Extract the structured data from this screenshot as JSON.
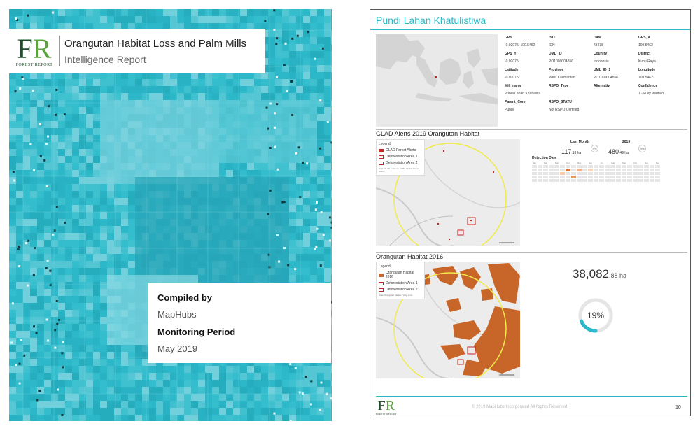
{
  "cover": {
    "logo_letters_f": "F",
    "logo_letters_r": "R",
    "logo_sub": "FOREST REPORT",
    "title": "Orangutan Habitat Loss and Palm Mills",
    "subtitle": "Intelligence Report",
    "compiled_label": "Compiled by",
    "compiled_value": "MapHubs",
    "period_label": "Monitoring Period",
    "period_value": "May 2019"
  },
  "report": {
    "mill_name": "Pundi Lahan Khatulistiwa",
    "attributes": [
      {
        "key": "GPS",
        "value": "-0.02075, 109.5462"
      },
      {
        "key": "ISO",
        "value": "IDN"
      },
      {
        "key": "Date",
        "value": "43438"
      },
      {
        "key": "GPS_X",
        "value": "109.5462"
      },
      {
        "key": "GPS_Y",
        "value": "-0.02075"
      },
      {
        "key": "UML_ID",
        "value": "PO1000004856"
      },
      {
        "key": "Country",
        "value": "Indonesia"
      },
      {
        "key": "District",
        "value": "Kubu Raya"
      },
      {
        "key": "Latitude",
        "value": "-0.02075"
      },
      {
        "key": "Province",
        "value": "West Kalimantan"
      },
      {
        "key": "UML_ID_1",
        "value": "PO1000004856"
      },
      {
        "key": "Longitude",
        "value": "109.5462"
      },
      {
        "key": "Mill_name",
        "value": "Pundi Lahan Khatulisti..."
      },
      {
        "key": "RSPO_Type",
        "value": ""
      },
      {
        "key": "Alternativ",
        "value": ""
      },
      {
        "key": "Confidence",
        "value": "1 - Fully Verified"
      },
      {
        "key": "Parent_Com",
        "value": "Pundi"
      },
      {
        "key": "RSPO_STATU",
        "value": "Not RSPO Certified"
      },
      {
        "key": "",
        "value": ""
      },
      {
        "key": "",
        "value": ""
      }
    ],
    "glad": {
      "title": "GLAD Alerts 2019 Orangutan Habitat",
      "legend_title": "Legend",
      "legend_items": [
        "GLAD Forest Alerts",
        "Deforestation Area 1",
        "Deforestation Area 2"
      ],
      "legend_note": "Data: GLAD / Hansen, UMD, Global Forest Watch",
      "last_month_label": "Last Month",
      "last_month_value": "117",
      "last_month_decimal": ".18 ha",
      "last_month_pct": "0%",
      "year_label": "2019",
      "year_value": "480",
      "year_decimal": ".49 ha",
      "year_pct": "0%",
      "detection_label": "Detection Date",
      "months": [
        "Jan",
        "Feb",
        "Mar",
        "Apr",
        "May",
        "Jun",
        "Jul",
        "Aug",
        "Sep",
        "Oct",
        "Nov",
        "Dec"
      ]
    },
    "habitat": {
      "title": "Orangutan Habitat 2016",
      "legend_title": "Legend",
      "legend_items": [
        "Orangutan Habitat 2016",
        "Deforestation Area 1",
        "Deforestation Area 2"
      ],
      "legend_note": "Data: Orangutan habitat / Voigt et al.",
      "area_value": "38,082",
      "area_decimal": ".88 ha",
      "percent": "19%",
      "percent_value": 19
    },
    "copyright": "© 2019 MapHubs Incorporated All Rights Reserved",
    "page_number": "10"
  },
  "colors": {
    "accent": "#2db8c9",
    "habitat": "#c8662a",
    "alert": "#cc1f1f",
    "buffer": "#f1ea4a"
  }
}
